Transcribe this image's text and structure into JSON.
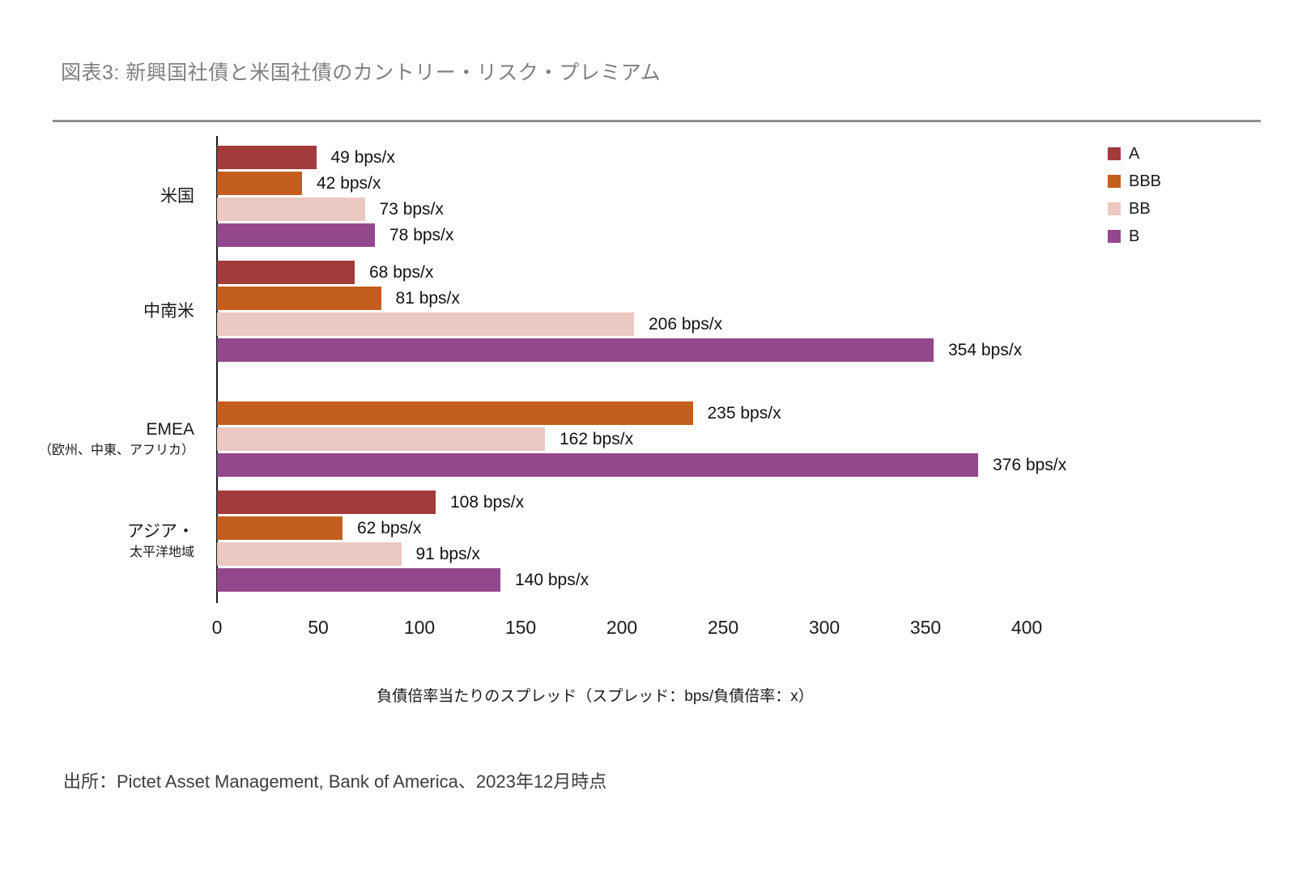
{
  "header": {
    "title": "図表3: 新興国社債と米国社債のカントリー・リスク・プレミアム"
  },
  "footer": {
    "source": "出所：Pictet Asset Management, Bank of America、2023年12月時点"
  },
  "chart_data": {
    "type": "bar",
    "orientation": "horizontal",
    "title": "図表3: 新興国社債と米国社債のカントリー・リスク・プレミアム",
    "xlabel": "負債倍率当たりのスプレッド（スプレッド：bps/負債倍率：x）",
    "xlim": [
      0,
      400
    ],
    "xticks": [
      0,
      50,
      100,
      150,
      200,
      250,
      300,
      350,
      400
    ],
    "unit_suffix": " bps/x",
    "grid": false,
    "legend_position": "top-right",
    "series_order": [
      "A",
      "BBB",
      "BB",
      "B"
    ],
    "colors": {
      "A": "#A23B3B",
      "BBB": "#C35E1E",
      "BB": "#EBC8C1",
      "B": "#93478D"
    },
    "groups": [
      {
        "label_lines": [
          "米国"
        ],
        "values": {
          "A": 49,
          "BBB": 42,
          "BB": 73,
          "B": 78
        }
      },
      {
        "label_lines": [
          "中南米"
        ],
        "values": {
          "A": 68,
          "BBB": 81,
          "BB": 206,
          "B": 354
        }
      },
      {
        "label_lines": [
          "EMEA",
          "（欧州、中東、アフリカ）"
        ],
        "values": {
          "A": null,
          "BBB": 235,
          "BB": 162,
          "B": 376
        }
      },
      {
        "label_lines": [
          "アジア・",
          "太平洋地域"
        ],
        "values": {
          "A": 108,
          "BBB": 62,
          "BB": 91,
          "B": 140
        }
      }
    ],
    "legend": [
      {
        "label": "A",
        "color": "#A23B3B"
      },
      {
        "label": "BBB",
        "color": "#C35E1E"
      },
      {
        "label": "BB",
        "color": "#EBC8C1"
      },
      {
        "label": "B",
        "color": "#93478D"
      }
    ]
  }
}
